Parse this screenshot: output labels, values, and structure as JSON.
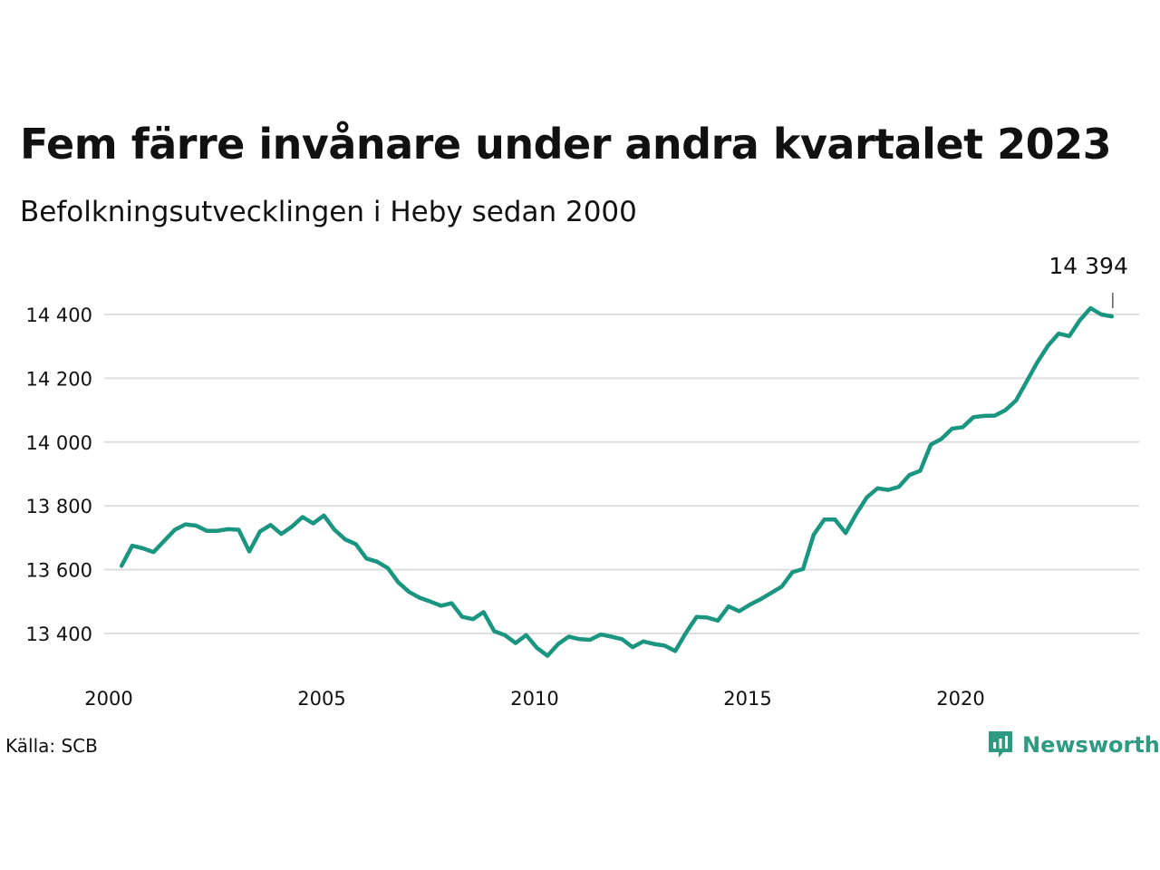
{
  "title": "Fem färre invånare under andra kvartalet 2023",
  "subtitle": "Befolkningsutvecklingen i Heby sedan 2000",
  "source": "Källa: SCB",
  "brand": {
    "name": "Newsworthy",
    "icon": "newsworthy-logo-icon",
    "color": "#2e9a82"
  },
  "colors": {
    "line": "#1a9580",
    "grid": "#dedede",
    "text": "#111111"
  },
  "chart_data": {
    "type": "line",
    "x_axis": {
      "min": 2000,
      "max": 2024,
      "ticks": [
        2000,
        2005,
        2010,
        2015,
        2020
      ]
    },
    "y_axis": {
      "min": 13260,
      "max": 14490,
      "ticks": [
        13400,
        13600,
        13800,
        14000,
        14200,
        14400
      ],
      "tick_labels": [
        "13 400",
        "13 600",
        "13 800",
        "14 000",
        "14 200",
        "14 400"
      ]
    },
    "grid": "horizontal",
    "end_label": {
      "text": "14 394",
      "value": 14394
    },
    "series": [
      {
        "x": [
          2000.13,
          2000.38,
          2000.63,
          2000.88,
          2001.13,
          2001.38,
          2001.63,
          2001.88,
          2002.13,
          2002.38,
          2002.63,
          2002.88,
          2003.13,
          2003.38,
          2003.63,
          2003.88,
          2004.13,
          2004.38,
          2004.63,
          2004.88,
          2005.13,
          2005.38,
          2005.63,
          2005.88,
          2006.13,
          2006.38,
          2006.63,
          2006.88,
          2007.13,
          2007.38,
          2007.63,
          2007.88,
          2008.13,
          2008.38,
          2008.63,
          2008.88,
          2009.13,
          2009.38,
          2009.63,
          2009.88,
          2010.13,
          2010.38,
          2010.63,
          2010.88,
          2011.13,
          2011.38,
          2011.63,
          2011.88,
          2012.13,
          2012.38,
          2012.63,
          2012.88,
          2013.13,
          2013.38,
          2013.63,
          2013.88,
          2014.13,
          2014.38,
          2014.63,
          2014.88,
          2015.13,
          2015.38,
          2015.63,
          2015.88,
          2016.13,
          2016.38,
          2016.63,
          2016.88,
          2017.13,
          2017.38,
          2017.63,
          2017.88,
          2018.13,
          2018.38,
          2018.63,
          2018.88,
          2019.13,
          2019.38,
          2019.63,
          2019.88,
          2020.13,
          2020.38,
          2020.63,
          2020.88,
          2021.13,
          2021.38,
          2021.63,
          2021.88,
          2022.13,
          2022.38,
          2022.63,
          2022.88,
          2023.13,
          2023.38
        ],
        "values": [
          13612,
          13675,
          13667,
          13655,
          13690,
          13725,
          13742,
          13738,
          13722,
          13722,
          13727,
          13725,
          13657,
          13720,
          13740,
          13712,
          13735,
          13765,
          13745,
          13770,
          13725,
          13695,
          13680,
          13635,
          13625,
          13605,
          13560,
          13530,
          13512,
          13500,
          13487,
          13495,
          13452,
          13445,
          13467,
          13407,
          13395,
          13370,
          13395,
          13355,
          13330,
          13367,
          13390,
          13382,
          13380,
          13397,
          13390,
          13382,
          13357,
          13375,
          13367,
          13362,
          13345,
          13402,
          13452,
          13450,
          13440,
          13485,
          13470,
          13490,
          13507,
          13527,
          13547,
          13592,
          13602,
          13710,
          13757,
          13757,
          13715,
          13775,
          13827,
          13855,
          13850,
          13860,
          13897,
          13910,
          13992,
          14010,
          14042,
          14047,
          14078,
          14082,
          14083,
          14100,
          14130,
          14190,
          14250,
          14302,
          14340,
          14332,
          14382,
          14420,
          14400,
          14394
        ]
      }
    ]
  }
}
